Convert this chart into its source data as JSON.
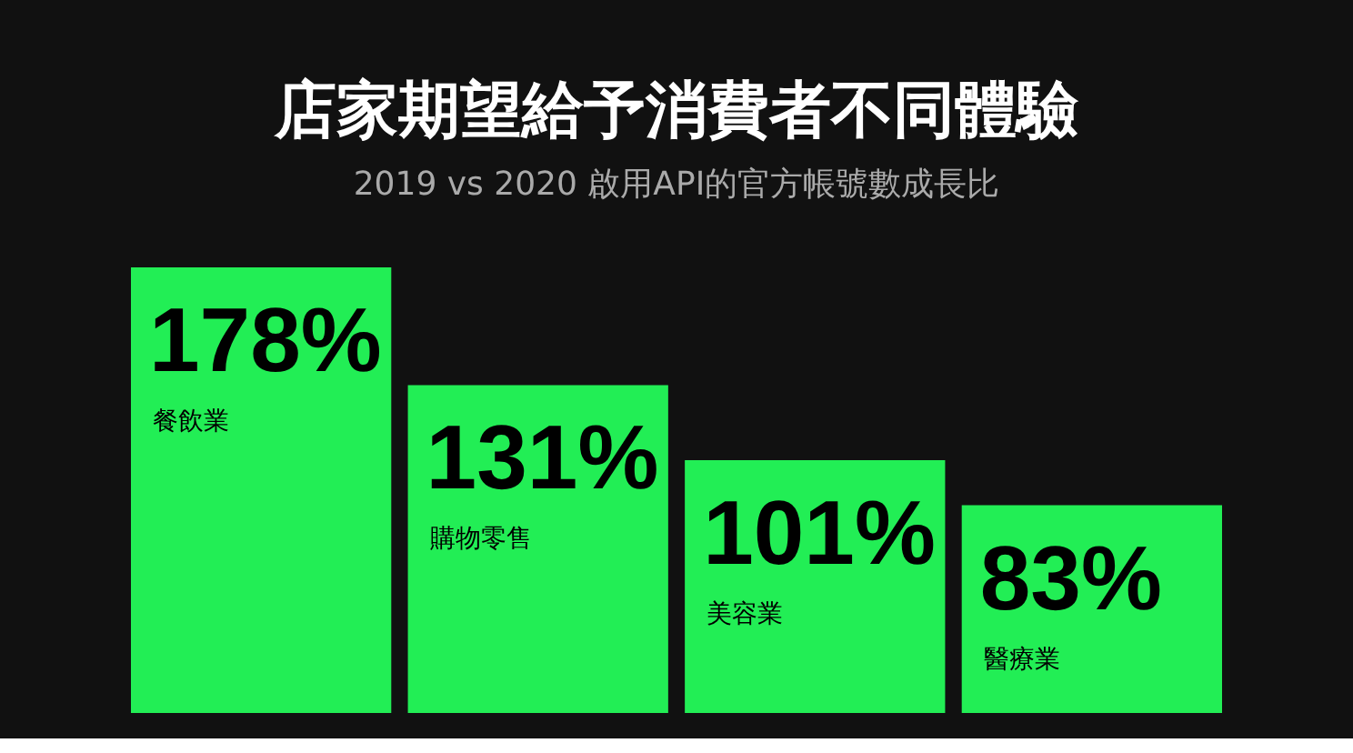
{
  "chart_data": {
    "type": "bar",
    "title": "店家期望給予消費者不同體驗",
    "subtitle": "2019 vs 2020 啟用API的官方帳號數成長比",
    "categories": [
      "餐飲業",
      "購物零售",
      "美容業",
      "醫療業"
    ],
    "values": [
      178,
      131,
      101,
      83
    ],
    "color": "#22ee55",
    "value_labels": [
      "178%",
      "131%",
      "101%",
      "83%"
    ]
  }
}
